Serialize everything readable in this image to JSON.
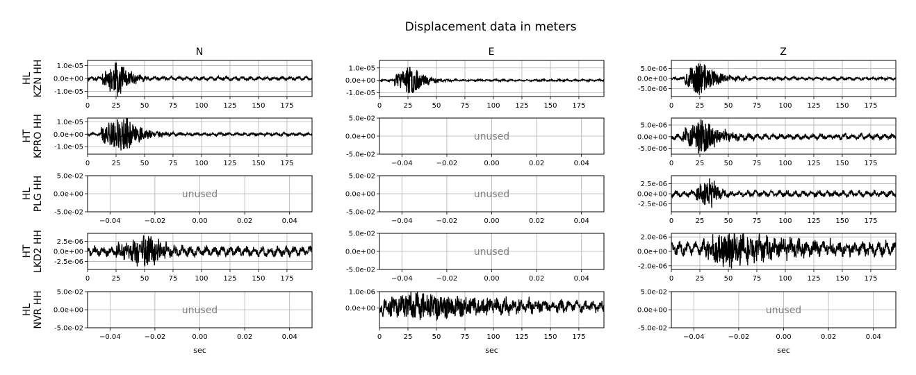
{
  "chart_data": {
    "type": "line",
    "title": "Displacement data in meters",
    "columns": [
      "N",
      "E",
      "Z"
    ],
    "xlabel": "sec",
    "unused_label": "unused",
    "rows": [
      {
        "label_network": "HL",
        "label_station": "KZN HH",
        "panels": [
          {
            "channel": "N",
            "used": true,
            "xlim": [
              0,
              197
            ],
            "xticks": [
              0,
              25,
              50,
              75,
              100,
              125,
              150,
              175
            ],
            "ylim": [
              -1.4e-05,
              1.4e-05
            ],
            "yticks": [
              -1e-05,
              0,
              1e-05
            ],
            "ytick_labels": [
              "-1.0e-05",
              "0.0e+00",
              "1.0e-05"
            ],
            "signal": {
              "onset": 13,
              "peak_t": 27,
              "amp": 1.35e-05,
              "decay": 10,
              "noise": 1e-06,
              "seed": 11
            }
          },
          {
            "channel": "E",
            "used": true,
            "xlim": [
              0,
              197
            ],
            "xticks": [
              0,
              25,
              50,
              75,
              100,
              125,
              150,
              175
            ],
            "ylim": [
              -1.3e-05,
              1.6e-05
            ],
            "yticks": [
              -1e-05,
              0,
              1e-05
            ],
            "ytick_labels": [
              "-1.0e-05",
              "0.0e+00",
              "1.0e-05"
            ],
            "signal": {
              "onset": 13,
              "peak_t": 28,
              "amp": 1.2e-05,
              "decay": 11,
              "noise": 5e-07,
              "seed": 23
            }
          },
          {
            "channel": "Z",
            "used": true,
            "xlim": [
              0,
              197
            ],
            "xticks": [
              0,
              25,
              50,
              75,
              100,
              125,
              150,
              175
            ],
            "ylim": [
              -9e-06,
              9e-06
            ],
            "yticks": [
              -5e-06,
              0,
              5e-06
            ],
            "ytick_labels": [
              "-5.0e-06",
              "0.0e+00",
              "5.0e-06"
            ],
            "signal": {
              "onset": 12,
              "peak_t": 25,
              "amp": 9e-06,
              "decay": 14,
              "noise": 5e-07,
              "seed": 37
            }
          }
        ]
      },
      {
        "label_network": "HT",
        "label_station": "KPRO HH",
        "panels": [
          {
            "channel": "N",
            "used": true,
            "xlim": [
              0,
              197
            ],
            "xticks": [
              0,
              25,
              50,
              75,
              100,
              125,
              150,
              175
            ],
            "ylim": [
              -1.6e-05,
              1.3e-05
            ],
            "yticks": [
              -1e-05,
              0,
              1e-05
            ],
            "ytick_labels": [
              "-1.0e-05",
              "0.0e+00",
              "1.0e-05"
            ],
            "signal": {
              "onset": 12,
              "peak_t": 33,
              "amp": 1.5e-05,
              "decay": 14,
              "noise": 8e-07,
              "seed": 41
            }
          },
          {
            "channel": "E",
            "used": false,
            "xlim": [
              -0.05,
              0.05
            ],
            "xticks": [
              -0.04,
              -0.02,
              0,
              0.02,
              0.04
            ],
            "xtick_labels": [
              "−0.04",
              "−0.02",
              "0.00",
              "0.02",
              "0.04"
            ],
            "ylim": [
              -0.05,
              0.05
            ],
            "yticks": [
              -0.05,
              0,
              0.05
            ],
            "ytick_labels": [
              "-5.0e-02",
              "0.0e+00",
              "5.0e-02"
            ]
          },
          {
            "channel": "Z",
            "used": true,
            "xlim": [
              0,
              197
            ],
            "xticks": [
              0,
              25,
              50,
              75,
              100,
              125,
              150,
              175
            ],
            "ylim": [
              -7.5e-06,
              8e-06
            ],
            "yticks": [
              -5e-06,
              0,
              5e-06
            ],
            "ytick_labels": [
              "-5.0e-06",
              "0.0e+00",
              "5.0e-06"
            ],
            "signal": {
              "onset": 10,
              "peak_t": 28,
              "amp": 7.5e-06,
              "decay": 16,
              "noise": 8e-07,
              "seed": 53
            }
          }
        ]
      },
      {
        "label_network": "HL",
        "label_station": "PLG HH",
        "panels": [
          {
            "channel": "N",
            "used": false,
            "xlim": [
              -0.05,
              0.05
            ],
            "xticks": [
              -0.04,
              -0.02,
              0,
              0.02,
              0.04
            ],
            "xtick_labels": [
              "−0.04",
              "−0.02",
              "0.00",
              "0.02",
              "0.04"
            ],
            "ylim": [
              -0.05,
              0.05
            ],
            "yticks": [
              -0.05,
              0,
              0.05
            ],
            "ytick_labels": [
              "-5.0e-02",
              "0.0e+00",
              "5.0e-02"
            ]
          },
          {
            "channel": "E",
            "used": false,
            "xlim": [
              -0.05,
              0.05
            ],
            "xticks": [
              -0.04,
              -0.02,
              0,
              0.02,
              0.04
            ],
            "xtick_labels": [
              "−0.04",
              "−0.02",
              "0.00",
              "0.02",
              "0.04"
            ],
            "ylim": [
              -0.05,
              0.05
            ],
            "yticks": [
              -0.05,
              0,
              0.05
            ],
            "ytick_labels": [
              "-5.0e-02",
              "0.0e+00",
              "5.0e-02"
            ]
          },
          {
            "channel": "Z",
            "used": true,
            "xlim": [
              0,
              197
            ],
            "xticks": [
              0,
              25,
              50,
              75,
              100,
              125,
              150,
              175
            ],
            "ylim": [
              -4.5e-06,
              4.5e-06
            ],
            "yticks": [
              -2.5e-06,
              0,
              2.5e-06
            ],
            "ytick_labels": [
              "-2.5e-06",
              "0.0e+00",
              "2.5e-06"
            ],
            "signal": {
              "onset": 22,
              "peak_t": 36,
              "amp": 4.2e-06,
              "decay": 5,
              "noise": 5e-07,
              "seed": 67
            }
          }
        ]
      },
      {
        "label_network": "HT",
        "label_station": "LKD2 HH",
        "panels": [
          {
            "channel": "N",
            "used": true,
            "xlim": [
              0,
              197
            ],
            "xticks": [
              0,
              25,
              50,
              75,
              100,
              125,
              150,
              175
            ],
            "ylim": [
              -4.5e-06,
              4.5e-06
            ],
            "yticks": [
              -2.5e-06,
              0,
              2.5e-06
            ],
            "ytick_labels": [
              "-2.5e-06",
              "0.0e+00",
              "2.5e-06"
            ],
            "signal": {
              "onset": 25,
              "peak_t": 54,
              "amp": 3.8e-06,
              "decay": 14,
              "noise": 8e-07,
              "seed": 71
            }
          },
          {
            "channel": "E",
            "used": false,
            "xlim": [
              -0.05,
              0.05
            ],
            "xticks": [
              -0.04,
              -0.02,
              0,
              0.02,
              0.04
            ],
            "xtick_labels": [
              "−0.04",
              "−0.02",
              "0.00",
              "0.02",
              "0.04"
            ],
            "ylim": [
              -0.05,
              0.05
            ],
            "yticks": [
              -0.05,
              0,
              0.05
            ],
            "ytick_labels": [
              "-5.0e-02",
              "0.0e+00",
              "5.0e-02"
            ]
          },
          {
            "channel": "Z",
            "used": true,
            "xlim": [
              0,
              197
            ],
            "xticks": [
              0,
              25,
              50,
              75,
              100,
              125,
              150,
              175
            ],
            "ylim": [
              -2.5e-06,
              2.5e-06
            ],
            "yticks": [
              -2e-06,
              0,
              2e-06
            ],
            "ytick_labels": [
              "-2.0e-06",
              "0.0e+00",
              "2.0e-06"
            ],
            "signal": {
              "onset": 28,
              "peak_t": 45,
              "amp": 2.3e-06,
              "decay": 60,
              "noise": 6e-07,
              "seed": 83,
              "offset": 4e-07
            }
          }
        ]
      },
      {
        "label_network": "HL",
        "label_station": "NVR HH",
        "panels": [
          {
            "channel": "N",
            "used": false,
            "xlim": [
              -0.05,
              0.05
            ],
            "xticks": [
              -0.04,
              -0.02,
              0,
              0.02,
              0.04
            ],
            "xtick_labels": [
              "−0.04",
              "−0.02",
              "0.00",
              "0.02",
              "0.04"
            ],
            "ylim": [
              -0.05,
              0.05
            ],
            "yticks": [
              -0.05,
              0,
              0.05
            ],
            "ytick_labels": [
              "-5.0e-02",
              "0.0e+00",
              "5.0e-02"
            ]
          },
          {
            "channel": "E",
            "used": true,
            "xlim": [
              0,
              197
            ],
            "xticks": [
              0,
              25,
              50,
              75,
              100,
              125,
              150,
              175
            ],
            "ylim": [
              -1.2e-06,
              1e-06
            ],
            "yticks": [
              0,
              1e-06
            ],
            "ytick_labels": [
              "0.0e+00",
              "1.0e-06"
            ],
            "signal": {
              "onset": 0,
              "peak_t": 35,
              "amp": 8e-07,
              "decay": 80,
              "noise": 2e-07,
              "seed": 97,
              "offset": 1e-07
            }
          },
          {
            "channel": "Z",
            "used": false,
            "xlim": [
              -0.05,
              0.05
            ],
            "xticks": [
              -0.04,
              -0.02,
              0,
              0.02,
              0.04
            ],
            "xtick_labels": [
              "−0.04",
              "−0.02",
              "0.00",
              "0.02",
              "0.04"
            ],
            "ylim": [
              -0.05,
              0.05
            ],
            "yticks": [
              -0.05,
              0,
              0.05
            ],
            "ytick_labels": [
              "-5.0e-02",
              "0.0e+00",
              "5.0e-02"
            ]
          }
        ]
      }
    ],
    "colors": {
      "trace": "#000000",
      "grid": "#b0b0b0",
      "unused_text": "#808080",
      "axis": "#000000"
    }
  }
}
